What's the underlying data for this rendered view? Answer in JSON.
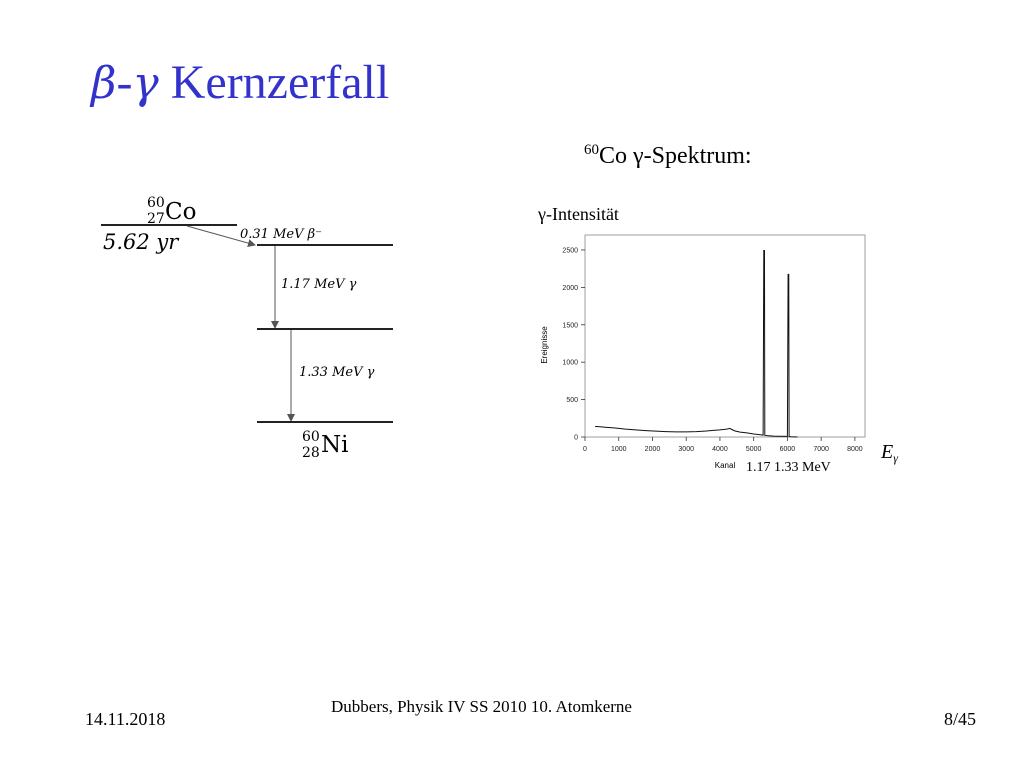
{
  "slide": {
    "title_beta": "β",
    "title_dash": "-",
    "title_gamma": "γ",
    "title_rest": " Kernzerfall",
    "spectrum_caption_sup": "60",
    "spectrum_caption_text": "Co γ-Spektrum:"
  },
  "decay_scheme": {
    "parent": {
      "mass": "60",
      "atomic": "27",
      "symbol": "Co",
      "halflife": "5.62 yr"
    },
    "beta_label": "0.31 MeV  β⁻",
    "gamma1_label": "1.17 MeV  γ",
    "gamma2_label": "1.33 MeV  γ",
    "daughter": {
      "mass": "60",
      "atomic": "28",
      "symbol": "Ni"
    }
  },
  "chart_data": {
    "type": "line",
    "title": "γ-Intensität",
    "xlabel": "Kanal",
    "ylabel": "Ereignisse",
    "xlim": [
      0,
      8300
    ],
    "ylim": [
      0,
      2700
    ],
    "xticks": [
      0,
      1000,
      2000,
      3000,
      4000,
      5000,
      6000,
      7000,
      8000
    ],
    "yticks": [
      0,
      500,
      1000,
      1500,
      2000,
      2500
    ],
    "series": [
      {
        "x": [
          300,
          400,
          600,
          900,
          1200,
          1500,
          1800,
          2100,
          2400,
          2700,
          3000,
          3300,
          3600,
          3800,
          4000,
          4200,
          4300,
          4350,
          4450,
          4600,
          4800,
          5000,
          5200,
          5280,
          5300,
          5310,
          5320,
          5330,
          5400,
          5600,
          5800,
          6000,
          6020,
          6030,
          6040,
          6050,
          6100,
          6200,
          6300
        ],
        "y": [
          140,
          138,
          130,
          120,
          105,
          95,
          85,
          78,
          72,
          68,
          68,
          72,
          80,
          88,
          95,
          105,
          115,
          100,
          80,
          65,
          55,
          40,
          30,
          25,
          2500,
          1800,
          2500,
          22,
          18,
          12,
          10,
          8,
          2180,
          1700,
          2180,
          6,
          4,
          2,
          0
        ]
      }
    ],
    "peak_labels": "1.17  1.33 MeV",
    "energy_axis_label": "E",
    "energy_axis_sub": "γ"
  },
  "footer": {
    "date": "14.11.2018",
    "source": "Dubbers, Physik IV SS 2010 10. Atomkerne",
    "page": "8/45"
  }
}
